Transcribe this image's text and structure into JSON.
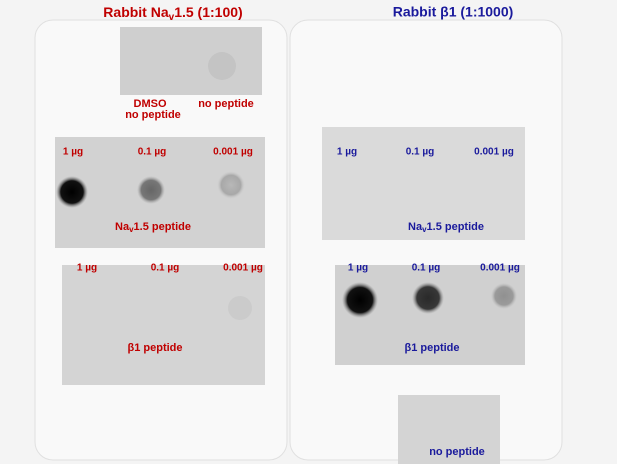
{
  "left": {
    "title": [
      "Rabbit Na",
      "v",
      "1.5 (1:100)"
    ],
    "control": {
      "dmso": "DMSO",
      "dmso_sub": "no peptide",
      "no_peptide": "no peptide"
    },
    "nav_blot": {
      "amounts": [
        "1 µg",
        "0.1 µg",
        "0.001 µg"
      ],
      "label": [
        "Na",
        "v",
        "1.5 peptide"
      ]
    },
    "b1_blot": {
      "amounts": [
        "1 µg",
        "0.1 µg",
        "0.001 µg"
      ],
      "label": "β1 peptide"
    }
  },
  "right": {
    "title": "Rabbit β1 (1:1000)",
    "nav_blot": {
      "amounts": [
        "1 µg",
        "0.1 µg",
        "0.001 µg"
      ],
      "label": [
        "Na",
        "v",
        "1.5 peptide"
      ]
    },
    "b1_blot": {
      "amounts": [
        "1 µg",
        "0.1 µg",
        "0.001 µg"
      ],
      "label": "β1 peptide"
    },
    "control": {
      "no_peptide": "no peptide"
    }
  }
}
